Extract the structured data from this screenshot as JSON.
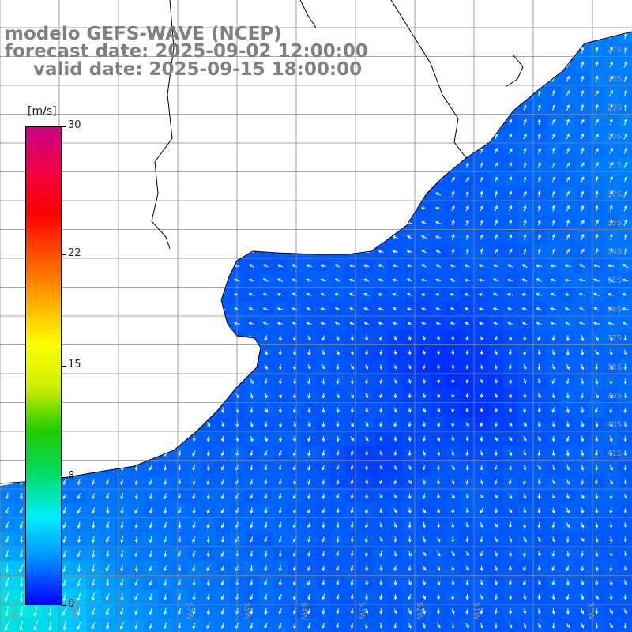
{
  "title": {
    "line1": "modelo GEFS-WAVE (NCEP)",
    "line2": "forecast date: 2025-09-02 12:00:00",
    "line3": "valid date: 2025-09-15 18:00:00"
  },
  "colorbar": {
    "unit": "[m/s]",
    "ticks": [
      "30",
      "22",
      "15",
      "8",
      "0"
    ],
    "tick_values": [
      30,
      22,
      15,
      8,
      0
    ],
    "range": [
      0,
      30
    ],
    "colors": [
      "#0000ff",
      "#0088ff",
      "#00eeff",
      "#00dd66",
      "#22cc00",
      "#ccee00",
      "#ffff00",
      "#ffaa00",
      "#ff5500",
      "#ff0000",
      "#ee0044",
      "#cc0088"
    ]
  },
  "grid_labels": {
    "longitude": [
      "60W",
      "58W",
      "57W",
      "55W",
      "54W",
      "53W",
      "52W",
      "51W",
      "50W"
    ],
    "latitude": [
      "27S",
      "28S",
      "29S",
      "30S",
      "31S",
      "32S",
      "33S",
      "34S",
      "35S",
      "36S",
      "37S",
      "38S",
      "39S",
      "40S",
      "41S"
    ]
  },
  "chart_data": {
    "type": "heatmap",
    "variable": "wind speed and direction",
    "unit": "m/s",
    "value_range": [
      0,
      30
    ],
    "dominant_speed_range": [
      0,
      10
    ]
  },
  "colors": {
    "land": "#ffffff",
    "coast": "#000000",
    "grid": "#888888",
    "title": "#808080"
  }
}
